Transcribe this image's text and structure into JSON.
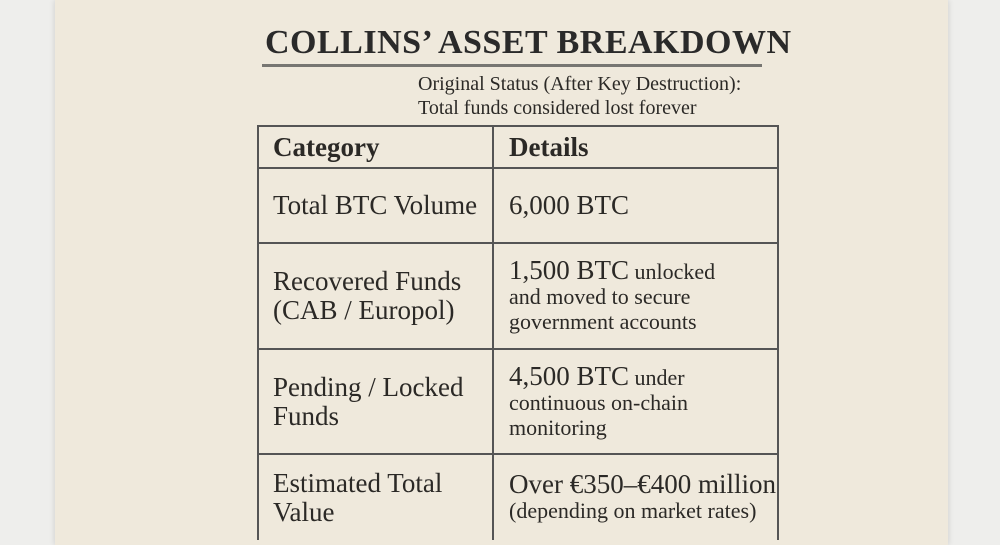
{
  "header": {
    "title": "COLLINS’ ASSET BREAKDOWN",
    "subtitle": [
      "Original Status (After Key Destruction):",
      "Total funds considered lost forever"
    ]
  },
  "table": {
    "columns": [
      "Category",
      "Details"
    ],
    "rows": [
      {
        "category": [
          "Total BTC Volume"
        ],
        "details": {
          "lead": "6,000 BTC",
          "lines": []
        }
      },
      {
        "category": [
          "Recovered Funds",
          "(CAB / Europol)"
        ],
        "details": {
          "lead": "1,500 BTC",
          "lines": [
            "unlocked",
            "and moved to secure",
            "government accounts"
          ]
        }
      },
      {
        "category": [
          "Pending / Locked",
          "Funds"
        ],
        "details": {
          "lead": "4,500 BTC",
          "lines": [
            "under",
            "continuous on-chain",
            "monitoring"
          ]
        }
      },
      {
        "category": [
          "Estimated Total",
          "Value"
        ],
        "details": {
          "lead": "Over €350–€400 million",
          "lines": [
            "",
            "(depending on market rates)"
          ]
        }
      }
    ]
  }
}
